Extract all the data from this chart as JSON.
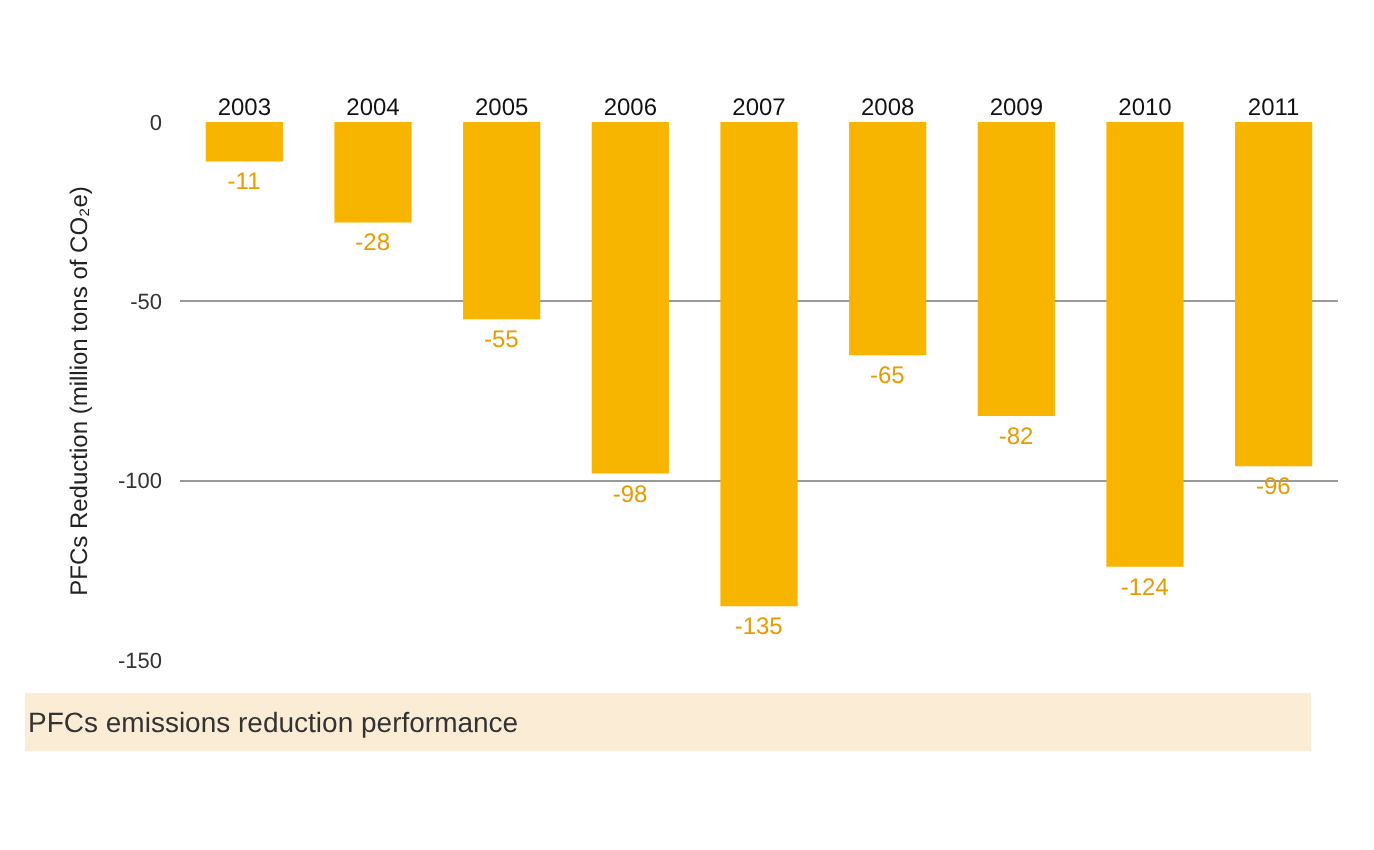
{
  "chart_data": {
    "type": "bar",
    "ylabel": "PFCs Reduction (million tons of CO₂e)",
    "categories": [
      "2003",
      "2004",
      "2005",
      "2006",
      "2007",
      "2008",
      "2009",
      "2010",
      "2011"
    ],
    "values": [
      -11,
      -28,
      -55,
      -98,
      -135,
      -65,
      -82,
      -124,
      -96
    ],
    "color": "#f7b500",
    "ylim": [
      -150,
      0
    ],
    "yticks": [
      0,
      -50,
      -100,
      -150
    ],
    "grid": "y",
    "data_labels": true,
    "annotations": [
      "PFCs emissions reduction performance"
    ]
  }
}
